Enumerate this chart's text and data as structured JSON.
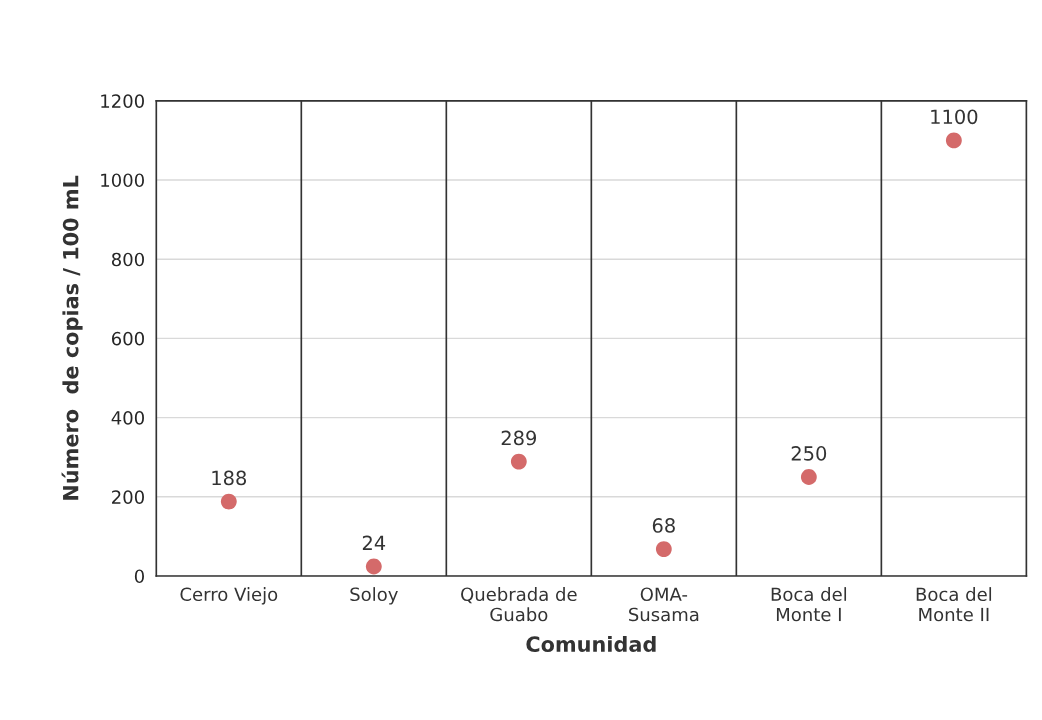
{
  "chart_data": {
    "type": "scatter",
    "xlabel": "Comunidad",
    "ylabel": "Número  de copias / 100 mL",
    "categories": [
      "Cerro Viejo",
      "Soloy",
      "Quebrada de\nGuabo",
      "OMA-\nSusama",
      "Boca del\nMonte I",
      "Boca del\nMonte II"
    ],
    "values": [
      188,
      24,
      289,
      68,
      250,
      1100
    ],
    "color": "#d46a6a",
    "data_labels": true,
    "marker": "circle",
    "ylim": [
      0,
      1200
    ],
    "yticks": [
      0,
      200,
      400,
      600,
      800,
      1000,
      1200
    ],
    "grid": true
  }
}
